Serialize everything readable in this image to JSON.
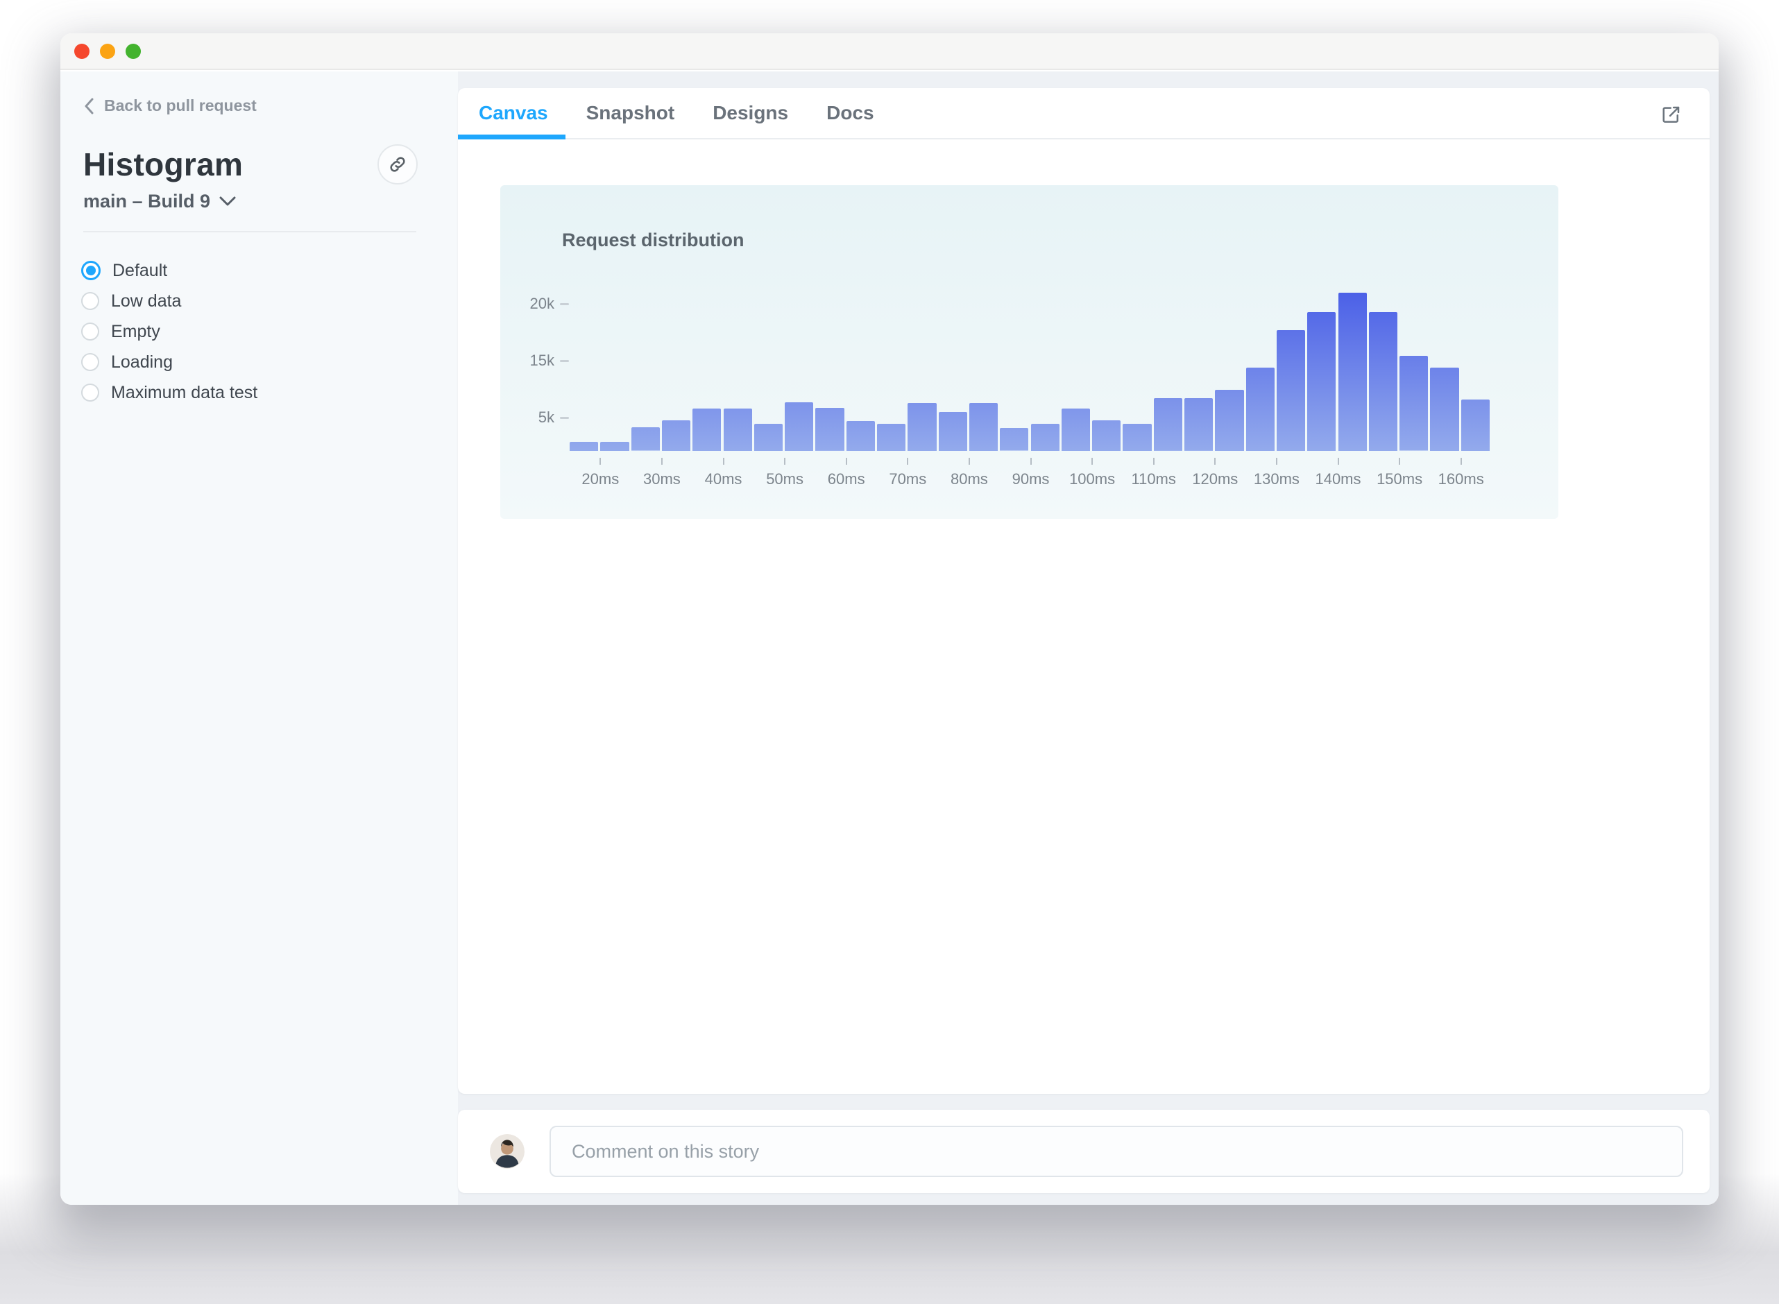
{
  "window": {
    "traffic_lights": [
      {
        "name": "close",
        "color": "#f5472d"
      },
      {
        "name": "minimize",
        "color": "#fba313"
      },
      {
        "name": "zoom",
        "color": "#43b32e"
      }
    ]
  },
  "sidebar": {
    "back_label": "Back to pull request",
    "story_name": "Histogram",
    "build_label": "main – Build 9",
    "stories": [
      {
        "label": "Default",
        "selected": true
      },
      {
        "label": "Low data",
        "selected": false
      },
      {
        "label": "Empty",
        "selected": false
      },
      {
        "label": "Loading",
        "selected": false
      },
      {
        "label": "Maximum data test",
        "selected": false
      }
    ]
  },
  "tabs": [
    {
      "label": "Canvas",
      "active": true
    },
    {
      "label": "Snapshot",
      "active": false
    },
    {
      "label": "Designs",
      "active": false
    },
    {
      "label": "Docs",
      "active": false
    }
  ],
  "chart_data": {
    "type": "bar",
    "title": "Request distribution",
    "x_unit": "ms",
    "bin_width_ms": 5,
    "bin_start_ms": [
      15,
      20,
      25,
      30,
      35,
      40,
      45,
      50,
      55,
      60,
      65,
      70,
      75,
      80,
      85,
      90,
      95,
      100,
      105,
      110,
      115,
      120,
      125,
      130,
      135,
      140,
      145,
      150,
      155,
      160
    ],
    "values_k": [
      1.4,
      1.4,
      3.5,
      4.6,
      6.6,
      6.6,
      4.1,
      7.7,
      6.7,
      4.5,
      4.1,
      7.6,
      6.0,
      7.6,
      3.4,
      4.1,
      6.6,
      4.6,
      4.1,
      8.4,
      8.4,
      9.9,
      13.8,
      17.7,
      19.3,
      21.0,
      19.3,
      15.4,
      13.8,
      8.2
    ],
    "x_tick_labels": [
      "20ms",
      "30ms",
      "40ms",
      "50ms",
      "60ms",
      "70ms",
      "80ms",
      "90ms",
      "100ms",
      "110ms",
      "120ms",
      "130ms",
      "140ms",
      "150ms",
      "160ms"
    ],
    "y_ticks": [
      {
        "label": "20k",
        "value_k": 20
      },
      {
        "label": "15k",
        "value_k": 15
      },
      {
        "label": "5k",
        "value_k": 5
      }
    ],
    "ylim_k": [
      0,
      24
    ],
    "grid": false,
    "legend": false
  },
  "comment": {
    "placeholder": "Comment on this story"
  },
  "colors": {
    "accent": "#1ea7fd",
    "bar_top": "#4b60e7",
    "bar_bottom": "#93aaec",
    "panel_top": "#e7f3f6",
    "panel_bottom": "#f3f9fa"
  }
}
